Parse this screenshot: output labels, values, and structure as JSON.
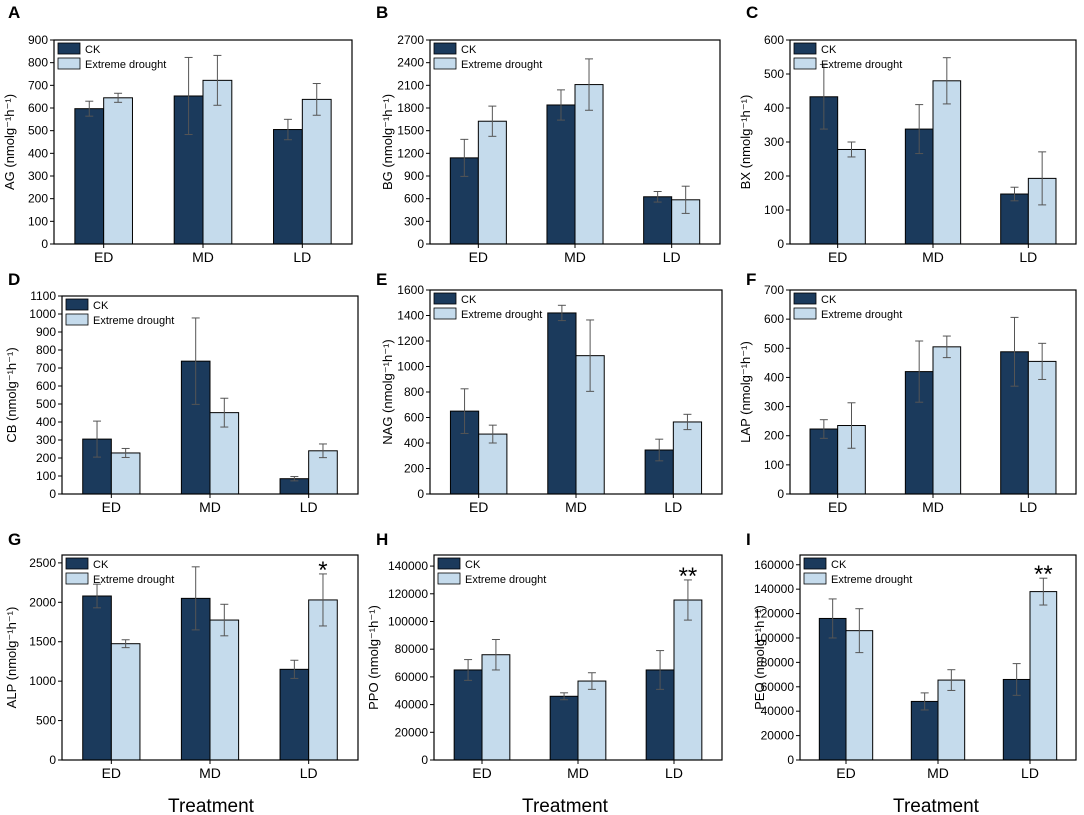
{
  "colors": {
    "ck": "#1b3a5c",
    "drought": "#c5dbec",
    "axis": "#000000"
  },
  "legend": [
    "CK",
    "Extreme drought"
  ],
  "xaxis_title": "Treatment",
  "chart_data": [
    {
      "panel": "A",
      "type": "bar",
      "ylabel": "AG (nmolg⁻¹h⁻¹)",
      "ylim": [
        0,
        900
      ],
      "yticks": [
        0,
        100,
        200,
        300,
        400,
        500,
        600,
        700,
        800,
        900
      ],
      "categories": [
        "ED",
        "MD",
        "LD"
      ],
      "series": [
        {
          "name": "CK",
          "values": [
            597,
            653,
            505
          ],
          "errors": [
            33,
            170,
            45
          ]
        },
        {
          "name": "Extreme drought",
          "values": [
            645,
            722,
            638
          ],
          "errors": [
            20,
            110,
            70
          ]
        }
      ],
      "significance": [
        "",
        "",
        ""
      ]
    },
    {
      "panel": "B",
      "type": "bar",
      "ylabel": "BG (nmolg⁻¹h⁻¹)",
      "ylim": [
        0,
        2700
      ],
      "yticks": [
        0,
        300,
        600,
        900,
        1200,
        1500,
        1800,
        2100,
        2400,
        2700
      ],
      "categories": [
        "ED",
        "MD",
        "LD"
      ],
      "series": [
        {
          "name": "CK",
          "values": [
            1140,
            1840,
            625
          ],
          "errors": [
            245,
            200,
            70
          ]
        },
        {
          "name": "Extreme drought",
          "values": [
            1625,
            2110,
            585
          ],
          "errors": [
            200,
            340,
            180
          ]
        }
      ],
      "significance": [
        "",
        "",
        ""
      ]
    },
    {
      "panel": "C",
      "type": "bar",
      "ylabel": "BX (nmolg⁻¹h⁻¹)",
      "ylim": [
        0,
        600
      ],
      "yticks": [
        0,
        100,
        200,
        300,
        400,
        500,
        600
      ],
      "categories": [
        "ED",
        "MD",
        "LD"
      ],
      "series": [
        {
          "name": "CK",
          "values": [
            433,
            338,
            147
          ],
          "errors": [
            95,
            72,
            20
          ]
        },
        {
          "name": "Extreme drought",
          "values": [
            278,
            480,
            193
          ],
          "errors": [
            22,
            68,
            78
          ]
        }
      ],
      "significance": [
        "",
        "",
        ""
      ]
    },
    {
      "panel": "D",
      "type": "bar",
      "ylabel": "CB (nmolg⁻¹h⁻¹)",
      "ylim": [
        0,
        1100
      ],
      "yticks": [
        0,
        100,
        200,
        300,
        400,
        500,
        600,
        700,
        800,
        900,
        1000,
        1100
      ],
      "categories": [
        "ED",
        "MD",
        "LD"
      ],
      "series": [
        {
          "name": "CK",
          "values": [
            305,
            738,
            85
          ],
          "errors": [
            100,
            240,
            12
          ]
        },
        {
          "name": "Extreme drought",
          "values": [
            228,
            452,
            240
          ],
          "errors": [
            25,
            80,
            38
          ]
        }
      ],
      "significance": [
        "",
        "",
        ""
      ]
    },
    {
      "panel": "E",
      "type": "bar",
      "ylabel": "NAG (nmolg⁻¹h⁻¹)",
      "ylim": [
        0,
        1600
      ],
      "yticks": [
        0,
        200,
        400,
        600,
        800,
        1000,
        1200,
        1400,
        1600
      ],
      "categories": [
        "ED",
        "MD",
        "LD"
      ],
      "series": [
        {
          "name": "CK",
          "values": [
            650,
            1420,
            345
          ],
          "errors": [
            175,
            60,
            85
          ]
        },
        {
          "name": "Extreme drought",
          "values": [
            470,
            1085,
            565
          ],
          "errors": [
            70,
            280,
            60
          ]
        }
      ],
      "significance": [
        "",
        "",
        ""
      ]
    },
    {
      "panel": "F",
      "type": "bar",
      "ylabel": "LAP (nmolg⁻¹h⁻¹)",
      "ylim": [
        0,
        700
      ],
      "yticks": [
        0,
        100,
        200,
        300,
        400,
        500,
        600,
        700
      ],
      "categories": [
        "ED",
        "MD",
        "LD"
      ],
      "series": [
        {
          "name": "CK",
          "values": [
            223,
            420,
            488
          ],
          "errors": [
            32,
            105,
            118
          ]
        },
        {
          "name": "Extreme drought",
          "values": [
            235,
            505,
            455
          ],
          "errors": [
            78,
            37,
            62
          ]
        }
      ],
      "significance": [
        "",
        "",
        ""
      ]
    },
    {
      "panel": "G",
      "type": "bar",
      "ylabel": "ALP (nmolg⁻¹h⁻¹)",
      "ylim": [
        0,
        2600
      ],
      "yticks": [
        0,
        500,
        1000,
        1500,
        2000,
        2500
      ],
      "categories": [
        "ED",
        "MD",
        "LD"
      ],
      "series": [
        {
          "name": "CK",
          "values": [
            2080,
            2050,
            1150
          ],
          "errors": [
            150,
            400,
            115
          ]
        },
        {
          "name": "Extreme drought",
          "values": [
            1475,
            1775,
            2030
          ],
          "errors": [
            50,
            200,
            330
          ]
        }
      ],
      "significance": [
        "",
        "",
        "*"
      ]
    },
    {
      "panel": "H",
      "type": "bar",
      "ylabel": "PPO (nmolg⁻¹h⁻¹)",
      "ylim": [
        0,
        148000
      ],
      "yticks": [
        0,
        20000,
        40000,
        60000,
        80000,
        100000,
        120000,
        140000
      ],
      "categories": [
        "ED",
        "MD",
        "LD"
      ],
      "series": [
        {
          "name": "CK",
          "values": [
            65000,
            46000,
            65000
          ],
          "errors": [
            7500,
            2500,
            14000
          ]
        },
        {
          "name": "Extreme drought",
          "values": [
            76000,
            57000,
            115500
          ],
          "errors": [
            11000,
            6000,
            14500
          ]
        }
      ],
      "significance": [
        "",
        "",
        "**"
      ]
    },
    {
      "panel": "I",
      "type": "bar",
      "ylabel": "PEO (nmolg⁻¹h⁻¹)",
      "ylim": [
        0,
        168000
      ],
      "yticks": [
        0,
        20000,
        40000,
        60000,
        80000,
        100000,
        120000,
        140000,
        160000
      ],
      "categories": [
        "ED",
        "MD",
        "LD"
      ],
      "series": [
        {
          "name": "CK",
          "values": [
            116000,
            48000,
            66000
          ],
          "errors": [
            16000,
            7000,
            13000
          ]
        },
        {
          "name": "Extreme drought",
          "values": [
            106000,
            65500,
            138000
          ],
          "errors": [
            18000,
            8500,
            11000
          ]
        }
      ],
      "significance": [
        "",
        "",
        "**"
      ]
    }
  ]
}
